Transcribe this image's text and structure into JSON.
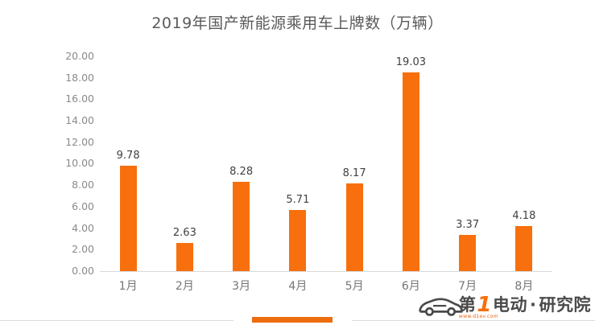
{
  "chart_data": {
    "type": "bar",
    "title": "2019年国产新能源乘用车上牌数（万辆）",
    "categories": [
      "1月",
      "2月",
      "3月",
      "4月",
      "5月",
      "6月",
      "7月",
      "8月"
    ],
    "values": [
      9.78,
      2.63,
      8.28,
      5.71,
      8.17,
      19.03,
      3.37,
      4.18
    ],
    "value_labels": [
      "9.78",
      "2.63",
      "8.28",
      "5.71",
      "8.17",
      "19.03",
      "3.37",
      "4.18"
    ],
    "y_ticks": [
      "20.00",
      "18.00",
      "16.00",
      "14.00",
      "12.00",
      "10.00",
      "8.00",
      "6.00",
      "4.00",
      "2.00",
      "0.00"
    ],
    "ylim": [
      0,
      20
    ],
    "xlabel": "",
    "ylabel": "",
    "grid": false,
    "legend": "none",
    "bar_color": "#F7700D",
    "title_color": "#5a5a5a",
    "axis_line_color": "#d9d9d9"
  },
  "footer": {
    "accent_color": "#ED6C0C",
    "logo": {
      "part1": "第",
      "one": "1",
      "part2": "电动",
      "dot": "·",
      "part3": "研究院",
      "url": "www.d1ev.com"
    }
  }
}
